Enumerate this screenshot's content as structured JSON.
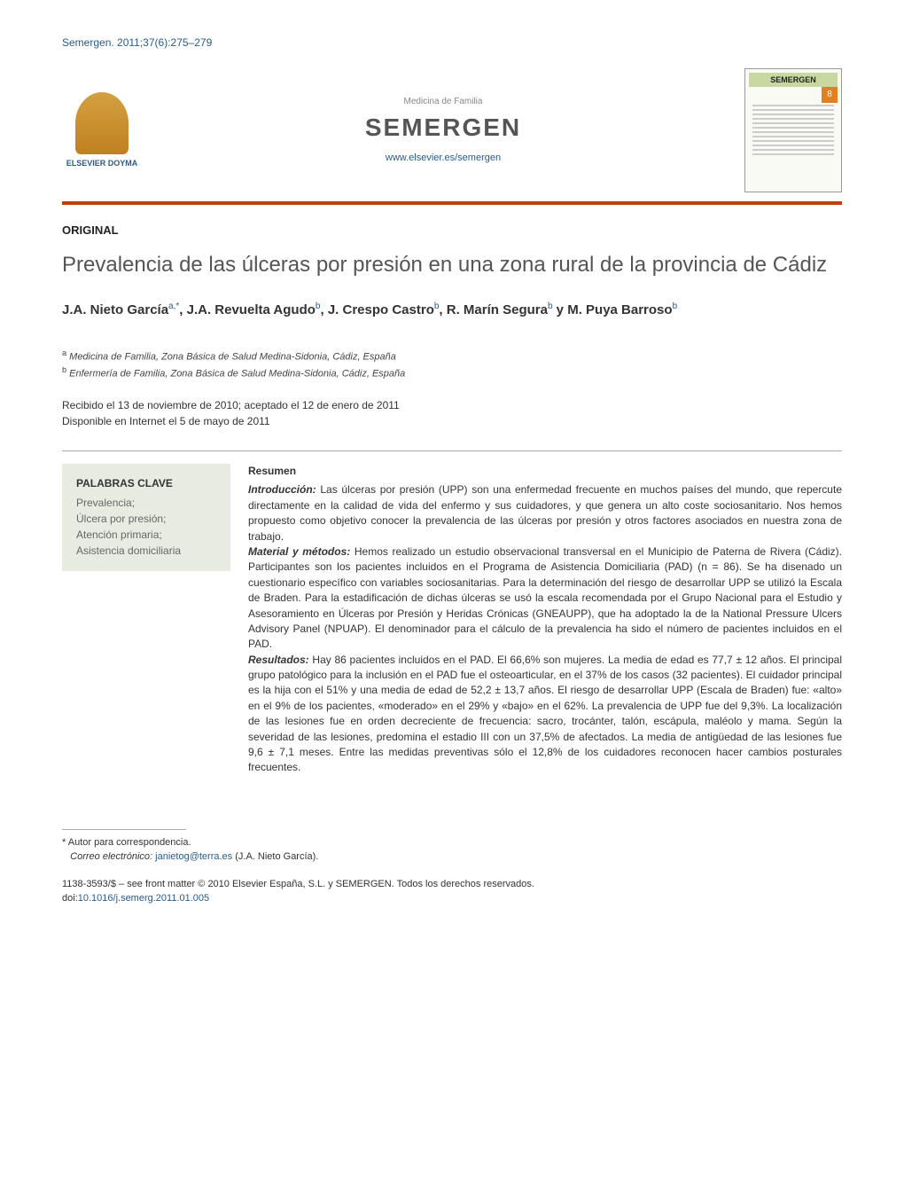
{
  "citation": "Semergen. 2011;37(6):275–279",
  "publisher": {
    "name": "ELSEVIER DOYMA"
  },
  "journal": {
    "subtitle": "Medicina de Familia",
    "name": "SEMERGEN",
    "url": "www.elsevier.es/semergen"
  },
  "cover": {
    "title": "SEMERGEN",
    "issue_badge": "8"
  },
  "article_type": "ORIGINAL",
  "title": "Prevalencia de las úlceras por presión en una zona rural de la provincia de Cádiz",
  "authors_html": "J.A. Nieto García<sup>a,*</sup>, J.A. Revuelta Agudo<sup>b</sup>, J. Crespo Castro<sup>b</sup>, R. Marín Segura<sup>b</sup> y M. Puya Barroso<sup>b</sup>",
  "affiliations": [
    {
      "mark": "a",
      "text": "Medicina de Familia, Zona Básica de Salud Medina-Sidonia, Cádiz, España"
    },
    {
      "mark": "b",
      "text": "Enfermería de Familia, Zona Básica de Salud Medina-Sidonia, Cádiz, España"
    }
  ],
  "dates": {
    "received_accepted": "Recibido el 13 de noviembre de 2010; aceptado el 12 de enero de 2011",
    "online": "Disponible en Internet el 5 de mayo de 2011"
  },
  "keywords": {
    "heading": "PALABRAS CLAVE",
    "list": "Prevalencia;\nÚlcera por presión;\nAtención primaria;\nAsistencia domiciliaria"
  },
  "abstract": {
    "heading": "Resumen",
    "sections": {
      "intro_label": "Introducción:",
      "intro": " Las úlceras por presión (UPP) son una enfermedad frecuente en muchos países del mundo, que repercute directamente en la calidad de vida del enfermo y sus cuidadores, y que genera un alto coste sociosanitario. Nos hemos propuesto como objetivo conocer la prevalencia de las úlceras por presión y otros factores asociados en nuestra zona de trabajo.",
      "methods_label": "Material y métodos:",
      "methods": " Hemos realizado un estudio observacional transversal en el Municipio de Paterna de Rivera (Cádiz). Participantes son los pacientes incluidos en el Programa de Asistencia Domiciliaria (PAD) (n = 86). Se ha disenado un cuestionario específico con variables sociosanitarias. Para la determinación del riesgo de desarrollar UPP se utilizó la Escala de Braden. Para la estadificación de dichas úlceras se usó la escala recomendada por el Grupo Nacional para el Estudio y Asesoramiento en Úlceras por Presión y Heridas Crónicas (GNEAUPP), que ha adoptado la de la National Pressure Ulcers Advisory Panel (NPUAP). El denominador para el cálculo de la prevalencia ha sido el número de pacientes incluidos en el PAD.",
      "results_label": "Resultados:",
      "results": " Hay 86 pacientes incluidos en el PAD. El 66,6% son mujeres. La media de edad es 77,7 ± 12 años. El principal grupo patológico para la inclusión en el PAD fue el osteoarticular, en el 37% de los casos (32 pacientes). El cuidador principal es la hija con el 51% y una media de edad de 52,2 ± 13,7 años. El riesgo de desarrollar UPP (Escala de Braden) fue: «alto» en el 9% de los pacientes, «moderado» en el 29% y «bajo» en el 62%. La prevalencia de UPP fue del 9,3%. La localización de las lesiones fue en orden decreciente de frecuencia: sacro, trocánter, talón, escápula, maléolo y mama. Según la severidad de las lesiones, predomina el estadio III con un 37,5% de afectados. La media de antigüedad de las lesiones fue 9,6 ± 7,1 meses. Entre las medidas preventivas sólo el 12,8% de los cuidadores reconocen hacer cambios posturales frecuentes."
    }
  },
  "footnote": {
    "corr_mark": "*",
    "corr_text": "Autor para correspondencia.",
    "email_label": "Correo electrónico:",
    "email": "janietog@terra.es",
    "email_author": "(J.A. Nieto García)."
  },
  "copyright": {
    "issn": "1138-3593/$ – see front matter © 2010 Elsevier España, S.L. y SEMERGEN. Todos los derechos reservados.",
    "doi_label": "doi:",
    "doi": "10.1016/j.semerg.2011.01.005"
  },
  "colors": {
    "link": "#2a5a8a",
    "rule": "#c04000",
    "keywords_bg": "#e8ece0"
  }
}
